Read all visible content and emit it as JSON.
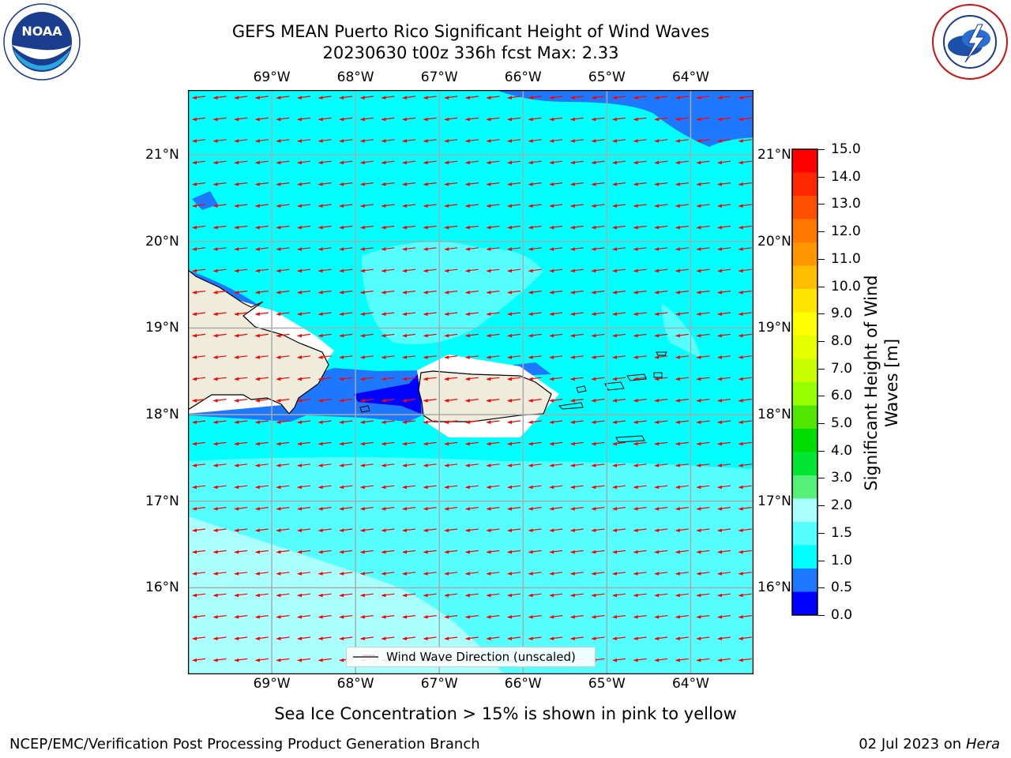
{
  "title": {
    "line1": "GEFS MEAN Puerto Rico Significant Height of Wind Waves",
    "line2": "20230630 t00z 336h fcst   Max: 2.33"
  },
  "logos": {
    "left_text": "NOAA",
    "left_ring_text": "NATIONAL OCEANIC AND ATMOSPHERIC ADMINISTRATION · U.S. DEPARTMENT OF COMMERCE",
    "right_ring_text": "NATIONAL WEATHER SERVICE"
  },
  "map": {
    "lon_ticks_top": [
      "69°W",
      "68°W",
      "67°W",
      "66°W",
      "65°W",
      "64°W"
    ],
    "lon_ticks_bottom": [
      "69°W",
      "68°W",
      "67°W",
      "66°W",
      "65°W",
      "64°W"
    ],
    "lat_ticks_left": [
      "21°N",
      "20°N",
      "19°N",
      "18°N",
      "17°N",
      "16°N"
    ],
    "lat_ticks_right": [
      "21°N",
      "20°N",
      "19°N",
      "18°N",
      "17°N",
      "16°N"
    ],
    "lon_values": [
      -69,
      -68,
      -67,
      -66,
      -65,
      -64
    ],
    "lat_values": [
      21,
      20,
      19,
      18,
      17,
      16
    ],
    "extent": {
      "lon_min": -70.0,
      "lon_max": -63.25,
      "lat_min": 15.0,
      "lat_max": 21.75
    },
    "wind_direction": "toward west-southwest",
    "colors": {
      "land": "#efecdc",
      "grid": "#aaaaaa",
      "arrow": "#ff0000",
      "sea_0_0p5": "#0000ff",
      "sea_0p5_1": "#1e78ff",
      "sea_1_1p5": "#00ffff",
      "sea_1p5_2": "#55ffff",
      "sea_2_3": "#aaffff"
    }
  },
  "legend": {
    "label": "Wind Wave Direction (unscaled)"
  },
  "colorbar": {
    "title_line1": "Significant Height of Wind",
    "title_line2": "Waves [m]",
    "ticks": [
      "15.0",
      "14.0",
      "13.0",
      "12.0",
      "11.0",
      "10.0",
      "9.0",
      "8.0",
      "7.0",
      "6.0",
      "5.0",
      "4.0",
      "3.0",
      "2.0",
      "1.5",
      "1.0",
      "0.5",
      "0.0"
    ],
    "colors_top_to_bottom": [
      "#ff0000",
      "#ff2800",
      "#ff5000",
      "#ff7800",
      "#ff9600",
      "#ffbe00",
      "#ffe600",
      "#ffff00",
      "#e6ff00",
      "#c8ff00",
      "#96ff00",
      "#50e600",
      "#00dc00",
      "#00e632",
      "#55f078",
      "#aaffff",
      "#55ffff",
      "#00ffff",
      "#1e78ff",
      "#0000ff"
    ]
  },
  "caption": "Sea Ice Concentration > 15% is shown in pink to yellow",
  "footer": {
    "left": "NCEP/EMC/Verification Post Processing Product Generation Branch",
    "right_prefix": "02 Jul 2023 on ",
    "right_machine": "Hera"
  }
}
